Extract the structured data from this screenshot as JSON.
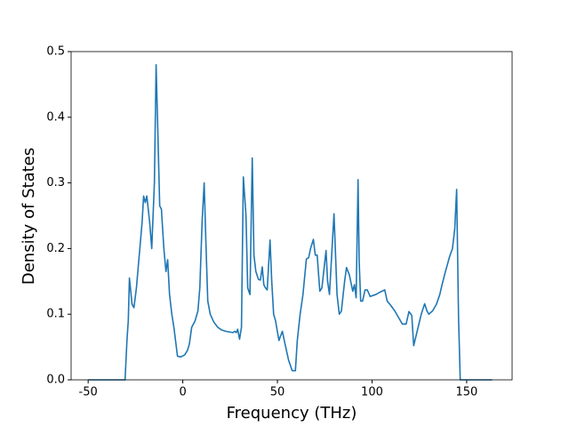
{
  "chart_data": {
    "type": "line",
    "xlabel": "Frequency (THz)",
    "ylabel": "Density of States",
    "x": [
      -50,
      -30.5,
      -29.5,
      -28.8,
      -28.2,
      -26.8,
      -25.8,
      -24.5,
      -23,
      -21.5,
      -20.7,
      -19.8,
      -19,
      -17.5,
      -16.4,
      -15,
      -14.1,
      -13.2,
      -12.2,
      -11.3,
      -10,
      -8.9,
      -8,
      -7,
      -5.8,
      -4.7,
      -2.8,
      -1,
      1,
      2.5,
      3.5,
      4.7,
      6.5,
      8,
      9,
      10.2,
      11.3,
      12.2,
      13.2,
      14.5,
      16.4,
      18.5,
      20.5,
      22.6,
      24.5,
      26.5,
      27.5,
      28.3,
      29,
      30,
      31,
      32,
      33.4,
      34.3,
      35.5,
      36.7,
      37.6,
      38.6,
      40,
      41,
      42,
      42.8,
      43.7,
      44.6,
      46.1,
      47,
      48,
      49,
      50.8,
      52.6,
      54,
      55.9,
      57.8,
      59.5,
      60.5,
      62,
      63.5,
      65.3,
      66.5,
      67.5,
      69,
      70,
      71,
      72.4,
      73.5,
      75.7,
      76.5,
      77.5,
      79.9,
      81.5,
      82.7,
      83.8,
      85.5,
      86.5,
      88,
      89.8,
      90.7,
      91.6,
      92.6,
      93.2,
      94,
      95,
      96.3,
      97.5,
      99,
      102,
      104.5,
      106.7,
      108,
      110,
      112,
      114,
      116,
      118,
      119.5,
      121,
      122,
      123.5,
      126,
      127.8,
      129,
      130,
      132,
      134,
      135.8,
      137,
      138.6,
      141,
      142.5,
      143.7,
      144.7,
      145.7,
      146.6,
      163.5
    ],
    "series": [
      {
        "color": "#1f77b4",
        "values": [
          0,
          0,
          0.06,
          0.09,
          0.155,
          0.115,
          0.11,
          0.14,
          0.19,
          0.24,
          0.28,
          0.27,
          0.28,
          0.24,
          0.2,
          0.3,
          0.48,
          0.38,
          0.265,
          0.26,
          0.2,
          0.165,
          0.183,
          0.13,
          0.1,
          0.08,
          0.036,
          0.035,
          0.038,
          0.045,
          0.055,
          0.08,
          0.09,
          0.105,
          0.14,
          0.24,
          0.3,
          0.21,
          0.12,
          0.1,
          0.088,
          0.08,
          0.076,
          0.074,
          0.073,
          0.072,
          0.074,
          0.072,
          0.077,
          0.062,
          0.08,
          0.309,
          0.25,
          0.14,
          0.13,
          0.338,
          0.19,
          0.165,
          0.153,
          0.152,
          0.172,
          0.145,
          0.14,
          0.137,
          0.213,
          0.15,
          0.1,
          0.09,
          0.06,
          0.074,
          0.055,
          0.03,
          0.014,
          0.014,
          0.06,
          0.1,
          0.13,
          0.184,
          0.186,
          0.2,
          0.214,
          0.19,
          0.19,
          0.135,
          0.14,
          0.197,
          0.15,
          0.13,
          0.253,
          0.13,
          0.1,
          0.105,
          0.15,
          0.171,
          0.16,
          0.135,
          0.145,
          0.125,
          0.305,
          0.18,
          0.12,
          0.12,
          0.137,
          0.137,
          0.127,
          0.13,
          0.134,
          0.137,
          0.12,
          0.113,
          0.105,
          0.095,
          0.085,
          0.085,
          0.104,
          0.098,
          0.052,
          0.07,
          0.1,
          0.116,
          0.105,
          0.1,
          0.105,
          0.115,
          0.13,
          0.145,
          0.163,
          0.188,
          0.2,
          0.23,
          0.29,
          0.095,
          0,
          0
        ]
      }
    ],
    "xlim": [
      -59,
      174
    ],
    "ylim": [
      0,
      0.5
    ],
    "xticks": [
      -50,
      0,
      50,
      100,
      150
    ],
    "yticks": [
      {
        "value": 0,
        "label": "0.0"
      },
      0.1,
      0.2,
      0.3,
      0.4,
      0.5
    ]
  }
}
